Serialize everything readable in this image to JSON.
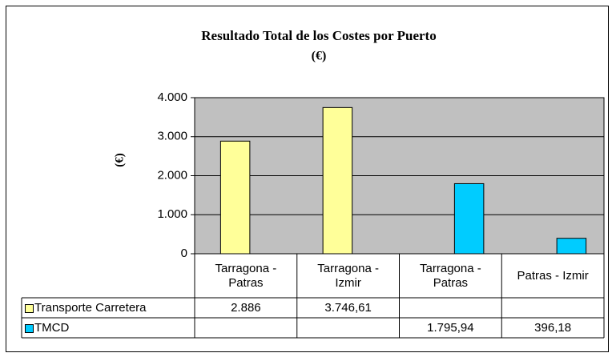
{
  "chart_data": {
    "type": "bar",
    "title": "Resultado Total de los Costes  por  Puerto",
    "subtitle": "(€)",
    "y_label": "(€)",
    "categories": [
      "Tarragona - Patras",
      "Tarragona - Izmir",
      "Tarragona - Patras",
      "Patras - Izmir"
    ],
    "series": [
      {
        "name": "Transporte Carretera",
        "color": "#ffff99",
        "values": [
          2886,
          3746.61,
          null,
          null
        ],
        "value_labels": [
          "2.886",
          "3.746,61",
          null,
          null
        ]
      },
      {
        "name": "TMCD",
        "color": "#00ccff",
        "values": [
          null,
          null,
          1795.94,
          396.18
        ],
        "value_labels": [
          null,
          null,
          "1.795,94",
          "396,18"
        ]
      }
    ],
    "ylim": [
      0,
      4000
    ],
    "yticks": [
      0,
      {
        "value": 1000,
        "label": "1.000"
      },
      {
        "value": 2000,
        "label": "2.000"
      },
      {
        "value": 3000,
        "label": "3.000"
      },
      {
        "value": 4000,
        "label": "4.000"
      }
    ],
    "grid": true,
    "plot_background": "#c0c0c0"
  }
}
